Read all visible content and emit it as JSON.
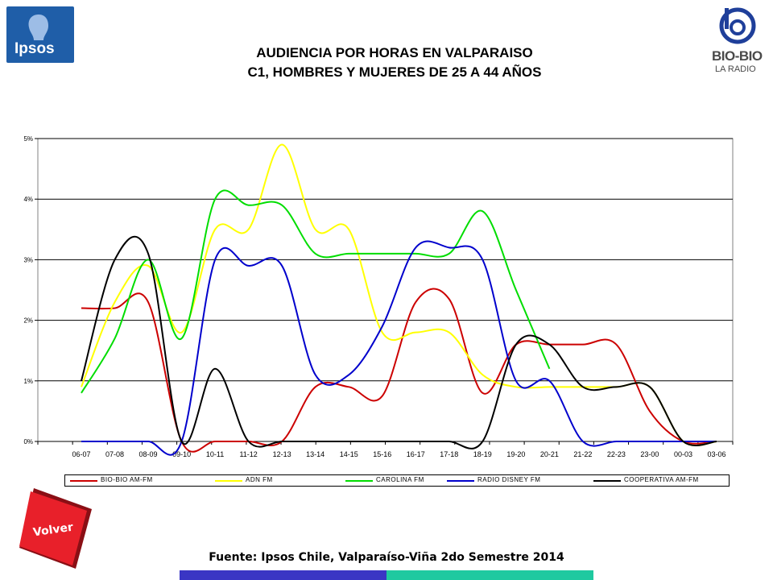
{
  "header": {
    "ipsos_logo_text": "Ipsos",
    "biobio_logo_name": "BIO-BIO",
    "biobio_logo_sub": "LA RADIO",
    "title_line1": "AUDIENCIA POR HORAS EN VALPARAISO",
    "title_line2": "C1, HOMBRES Y MUJERES DE 25 A 44 AÑOS"
  },
  "footer": {
    "volver_label": "Volver",
    "source": "Fuente: Ipsos Chile, Valparaíso-Viña 2do Semestre 2014"
  },
  "colors": {
    "bio_bio": "#cc0000",
    "adn": "#ffff00",
    "carolina": "#00dd00",
    "disney": "#0000cc",
    "cooperativa": "#000000",
    "ipsos_blue": "#1f5ea8",
    "volver_red": "#e8202a"
  },
  "chart_data": {
    "type": "line",
    "x": [
      "06-07",
      "07-08",
      "08-09",
      "09-10",
      "10-11",
      "11-12",
      "12-13",
      "13-14",
      "14-15",
      "15-16",
      "16-17",
      "17-18",
      "18-19",
      "19-20",
      "20-21",
      "21-22",
      "22-23",
      "23-00",
      "00-03",
      "03-06"
    ],
    "yticks": [
      "0%",
      "1%",
      "2%",
      "3%",
      "4%",
      "5%"
    ],
    "ylim": [
      0,
      5
    ],
    "grid": true,
    "legend": "bottom",
    "series": [
      {
        "name": "BIO-BIO AM-FM",
        "color": "#cc0000",
        "values": [
          2.2,
          2.2,
          2.3,
          0.0,
          0.0,
          0.0,
          0.0,
          0.9,
          0.9,
          0.75,
          2.3,
          2.35,
          0.8,
          1.6,
          1.6,
          1.6,
          1.6,
          0.5,
          0.0,
          0.0
        ]
      },
      {
        "name": "ADN FM",
        "color": "#ffff00",
        "values": [
          0.9,
          2.3,
          2.9,
          1.8,
          3.5,
          3.5,
          4.9,
          3.5,
          3.5,
          1.8,
          1.8,
          1.8,
          1.1,
          0.9,
          0.9,
          0.9,
          0.9,
          0.9,
          0.0,
          0.0
        ]
      },
      {
        "name": "CAROLINA FM",
        "color": "#00dd00",
        "values": [
          0.8,
          1.7,
          3.0,
          1.7,
          4.0,
          3.9,
          3.9,
          3.1,
          3.1,
          3.1,
          3.1,
          3.1,
          3.8,
          2.5,
          1.2,
          null,
          null,
          null,
          null,
          null
        ]
      },
      {
        "name": "RADIO DISNEY FM",
        "color": "#0000cc",
        "values": [
          0.0,
          0.0,
          0.0,
          0.0,
          3.0,
          2.9,
          2.9,
          1.1,
          1.1,
          1.9,
          3.2,
          3.2,
          3.0,
          1.0,
          1.0,
          0.0,
          0.0,
          0.0,
          0.0,
          0.0
        ]
      },
      {
        "name": "COOPERATIVA AM-FM",
        "color": "#000000",
        "values": [
          1.0,
          3.0,
          3.1,
          0.0,
          1.2,
          0.0,
          0.0,
          0.0,
          0.0,
          0.0,
          0.0,
          0.0,
          0.0,
          1.6,
          1.6,
          0.9,
          0.9,
          0.9,
          0.0,
          0.0
        ]
      }
    ]
  }
}
